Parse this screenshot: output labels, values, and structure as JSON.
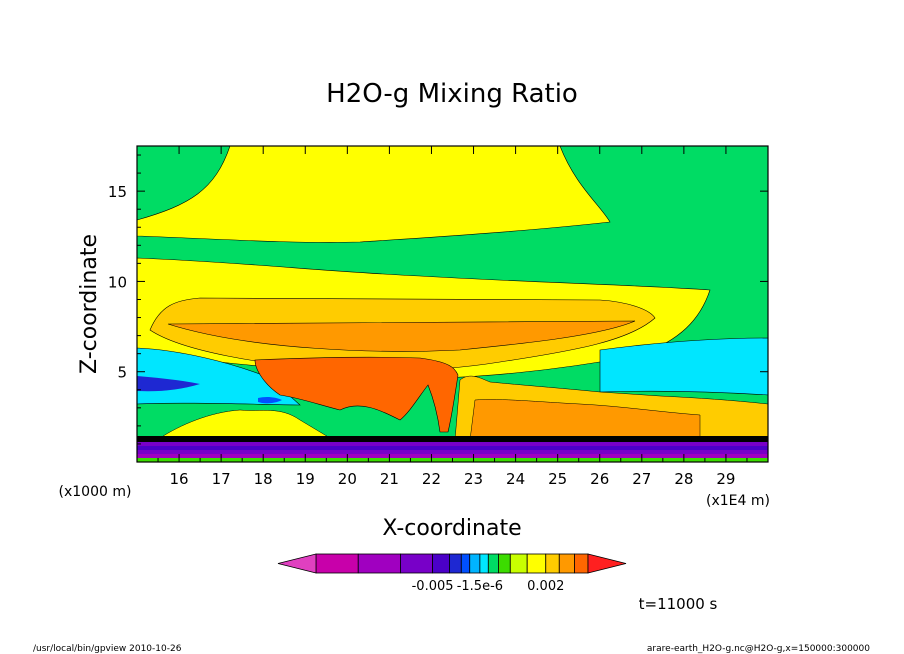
{
  "chart_data": {
    "type": "heatmap",
    "title": "H2O-g Mixing Ratio",
    "xlabel": "X-coordinate",
    "ylabel": "Z-coordinate",
    "x_unit": "(x1E4 m)",
    "y_unit": "(x1000 m)",
    "x_ticks": [
      "16",
      "17",
      "18",
      "19",
      "20",
      "21",
      "22",
      "23",
      "24",
      "25",
      "26",
      "27",
      "28",
      "29"
    ],
    "y_ticks": [
      "5",
      "10",
      "15"
    ],
    "xlim": [
      15.0,
      30.0
    ],
    "ylim": [
      0.0,
      17.5
    ],
    "colorbar": {
      "colors": [
        "#c800aa",
        "#a000c0",
        "#7800c8",
        "#4b00c8",
        "#1e28d2",
        "#0050ff",
        "#00b4ff",
        "#00e6ff",
        "#00dc64",
        "#3cdc00",
        "#c8ff00",
        "#ffff00",
        "#ffcc00",
        "#ff9900",
        "#ff6600"
      ],
      "left_arrow": "#e040c0",
      "right_arrow": "#ff2020",
      "tick_labels": [
        "-0.005",
        "-1.5e-6",
        "0.002"
      ]
    },
    "time_label": "t=11000 s"
  },
  "footer": {
    "left": "/usr/local/bin/gpview  2010-10-26",
    "right": "arare-earth_H2O-g.nc@H2O-g,x=150000:300000"
  }
}
